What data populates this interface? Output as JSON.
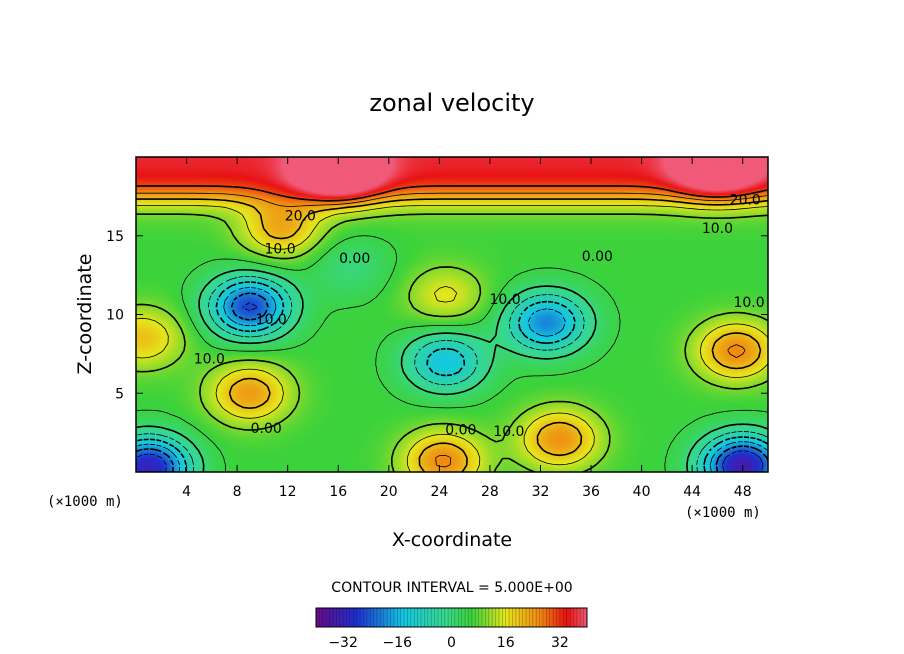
{
  "chart_data": {
    "type": "heatmap",
    "title": "zonal velocity",
    "xlabel": "X-coordinate",
    "ylabel": "Z-coordinate",
    "x_unit": "(×1000 m)",
    "z_unit": "(×1000 m)",
    "xlim": [
      0,
      50
    ],
    "ylim": [
      0,
      20
    ],
    "x_ticks": [
      4,
      8,
      12,
      16,
      20,
      24,
      28,
      32,
      36,
      40,
      44,
      48
    ],
    "y_ticks": [
      5,
      10,
      15
    ],
    "contour_interval_text": "CONTOUR INTERVAL = 5.000E+00",
    "contour_labels": [
      {
        "text": "20.0",
        "x": 13,
        "z": 16.3
      },
      {
        "text": "20.0",
        "x": 48.2,
        "z": 17.3
      },
      {
        "text": "10.0",
        "x": 11.4,
        "z": 14.2
      },
      {
        "text": "10.0",
        "x": 46,
        "z": 15.5
      },
      {
        "text": "10.0",
        "x": 29.2,
        "z": 11
      },
      {
        "text": "10.0",
        "x": 48.5,
        "z": 10.8
      },
      {
        "text": "10.0",
        "x": 10.7,
        "z": 9.7
      },
      {
        "text": "10.0",
        "x": 5.8,
        "z": 7.2
      },
      {
        "text": "10.0",
        "x": 29.5,
        "z": 2.6
      },
      {
        "text": "0.00",
        "x": 17.3,
        "z": 13.6
      },
      {
        "text": "0.00",
        "x": 36.5,
        "z": 13.7
      },
      {
        "text": "0.00",
        "x": 10.3,
        "z": 2.8
      },
      {
        "text": "0.00",
        "x": 25.7,
        "z": 2.7
      }
    ],
    "field_extrema": [
      {
        "x": 9,
        "z": 10.5,
        "value": -26
      },
      {
        "x": 32.5,
        "z": 9.5,
        "value": -20
      },
      {
        "x": 24.5,
        "z": 7,
        "value": -14
      },
      {
        "x": 1,
        "z": 0.3,
        "value": -32
      },
      {
        "x": 48,
        "z": 0.4,
        "value": -34
      },
      {
        "x": 17,
        "z": 13,
        "value": 0
      },
      {
        "x": 0.5,
        "z": 8.5,
        "value": 20
      },
      {
        "x": 47.5,
        "z": 7.7,
        "value": 26
      },
      {
        "x": 9,
        "z": 5,
        "value": 24
      },
      {
        "x": 24.3,
        "z": 0.7,
        "value": 26
      },
      {
        "x": 33.5,
        "z": 2.1,
        "value": 25
      },
      {
        "x": 16,
        "z": 19.2,
        "value": 36
      },
      {
        "x": 46,
        "z": 19.5,
        "value": 32
      },
      {
        "x": 24.5,
        "z": 11.2,
        "value": 16
      },
      {
        "x": 11.5,
        "z": 15.5,
        "value": 22
      }
    ],
    "colorbar": {
      "range": [
        -40,
        40
      ],
      "ticks": [
        -32,
        -16,
        0,
        16,
        32
      ],
      "tick_labels": [
        "−32",
        "−16",
        "0",
        "16",
        "32"
      ]
    },
    "colors": {
      "violet": "#6a0a86",
      "blue": "#1e2fd0",
      "cyan": "#14c8e0",
      "green": "#3bd23b",
      "yellow": "#e6e61c",
      "orange": "#f08a12",
      "red": "#e81212"
    }
  }
}
